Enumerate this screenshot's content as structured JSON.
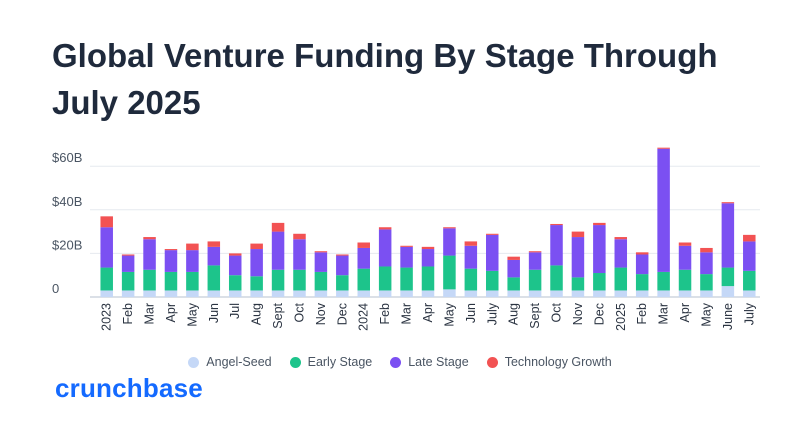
{
  "title": "Global Venture Funding By Stage Through July 2025",
  "logo": "crunchbase",
  "colors": {
    "Angel-Seed": "#c5d8f7",
    "Early Stage": "#1dc48b",
    "Late Stage": "#7b50f2",
    "Technology Growth": "#f25253",
    "axis": "#cfd6df",
    "grid": "#e6eaef"
  },
  "chart_data": {
    "type": "bar",
    "stacked": true,
    "categories": [
      "2023",
      "Feb",
      "Mar",
      "Apr",
      "May",
      "Jun",
      "Jul",
      "Aug",
      "Sept",
      "Oct",
      "Nov",
      "Dec",
      "2024",
      "Feb",
      "Mar",
      "Apr",
      "May",
      "Jun",
      "July",
      "Aug",
      "Sept",
      "Oct",
      "Nov",
      "Dec",
      "2025",
      "Feb",
      "Mar",
      "Apr",
      "May",
      "June",
      "July"
    ],
    "y_ticks": [
      "0",
      "$20B",
      "$40B",
      "$60B"
    ],
    "ylim": [
      0,
      70
    ],
    "grid": true,
    "legend_position": "bottom",
    "series": [
      {
        "name": "Angel-Seed",
        "values": [
          3,
          3,
          3,
          3,
          3,
          3,
          3,
          3,
          3,
          3,
          3,
          3,
          3,
          3,
          3,
          3,
          3.5,
          3,
          3,
          3,
          3,
          3,
          3,
          3,
          3,
          3,
          3,
          3,
          3,
          5,
          3
        ]
      },
      {
        "name": "Early Stage",
        "values": [
          10.5,
          8.5,
          9.5,
          8.5,
          8.5,
          11.5,
          7,
          6.5,
          9.5,
          9.5,
          8.5,
          7,
          10,
          11,
          10.5,
          11,
          15.5,
          10,
          9,
          6,
          9.5,
          11.5,
          6,
          8,
          10.5,
          7.5,
          8.5,
          9.5,
          7.5,
          8.5,
          9
        ]
      },
      {
        "name": "Late Stage",
        "values": [
          18.5,
          7.5,
          14,
          10,
          10,
          8.5,
          9,
          12.5,
          17.5,
          14,
          9,
          9,
          9.5,
          17,
          9.5,
          8,
          12.5,
          10.5,
          16.5,
          8,
          8,
          18.5,
          18.5,
          22,
          13,
          9,
          56.5,
          11,
          10,
          29.5,
          13.5
        ]
      },
      {
        "name": "Technology Growth",
        "values": [
          5,
          0.5,
          1,
          0.5,
          3,
          2.5,
          1,
          2.5,
          4,
          2.5,
          0.5,
          0.5,
          2.5,
          1,
          0.5,
          1,
          0.5,
          2,
          0.5,
          1.5,
          0.5,
          0.5,
          2.5,
          1,
          1,
          1,
          0.5,
          1.5,
          2,
          0.5,
          3
        ]
      }
    ]
  }
}
